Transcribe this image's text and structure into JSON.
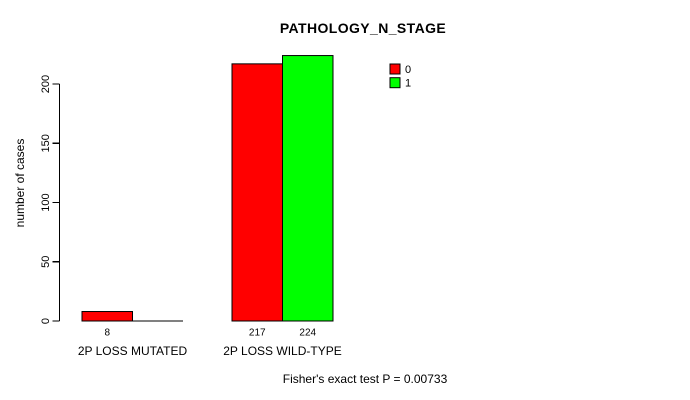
{
  "chart_data": {
    "type": "bar",
    "title": "PATHOLOGY_N_STAGE",
    "ylabel": "number of cases",
    "xlabel": "",
    "categories": [
      "2P LOSS MUTATED",
      "2P LOSS WILD-TYPE"
    ],
    "series": [
      {
        "name": "0",
        "color": "#FF0000",
        "values": [
          8,
          217
        ]
      },
      {
        "name": "1",
        "color": "#00FF00",
        "values": [
          0,
          224
        ]
      }
    ],
    "bar_value_labels": [
      [
        "8",
        ""
      ],
      [
        "217",
        "224"
      ]
    ],
    "ylim": [
      0,
      200
    ],
    "yticks": [
      0,
      50,
      100,
      150,
      200
    ],
    "grid": false,
    "legend_position": "top-right",
    "axis_color": "#000000",
    "background_color": "#FFFFFF",
    "caption": "Fisher's exact test P = 0.00733"
  }
}
